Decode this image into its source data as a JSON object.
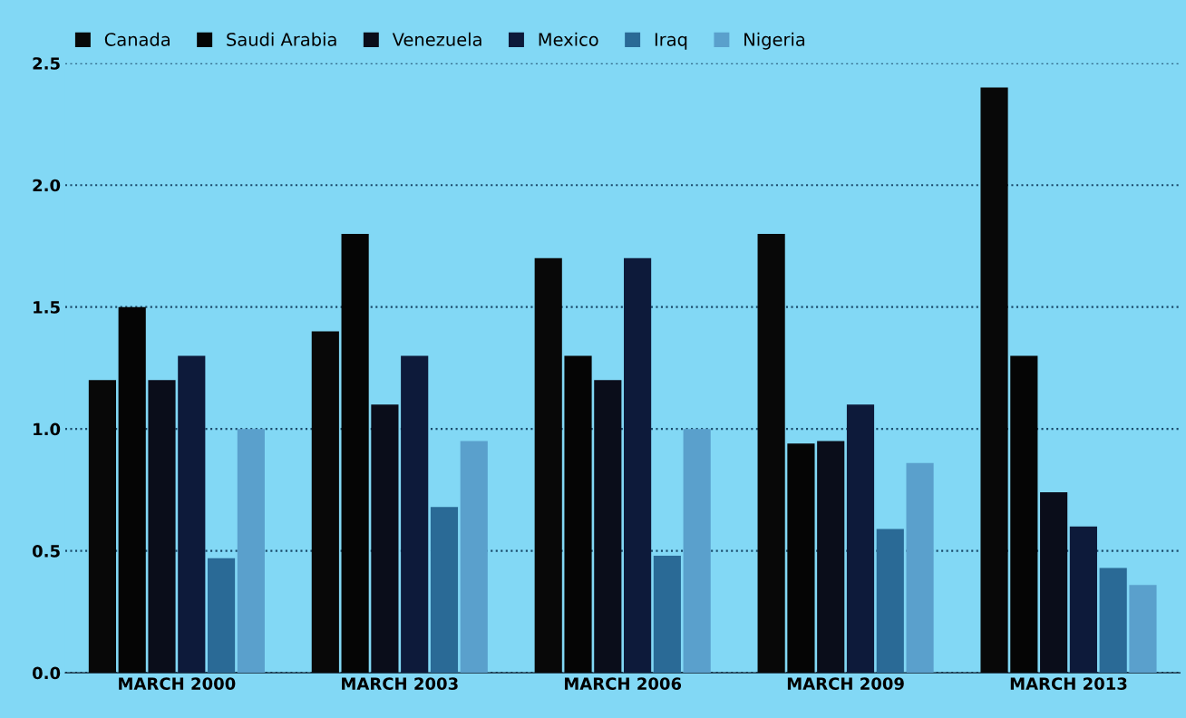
{
  "chart_data": {
    "type": "bar",
    "categories": [
      "MARCH 2000",
      "MARCH 2003",
      "MARCH 2006",
      "MARCH 2009",
      "MARCH 2013"
    ],
    "series": [
      {
        "name": "Canada",
        "color": "#080808",
        "values": [
          1.2,
          1.4,
          1.7,
          1.8,
          2.4
        ]
      },
      {
        "name": "Saudi Arabia",
        "color": "#050505",
        "values": [
          1.5,
          1.8,
          1.3,
          0.94,
          1.3
        ]
      },
      {
        "name": "Venezuela",
        "color": "#0a0d1a",
        "values": [
          1.2,
          1.1,
          1.2,
          0.95,
          0.74
        ]
      },
      {
        "name": "Mexico",
        "color": "#0d1a3a",
        "values": [
          1.3,
          1.3,
          1.7,
          1.1,
          0.6
        ]
      },
      {
        "name": "Iraq",
        "color": "#2a6a96",
        "values": [
          0.47,
          0.68,
          0.48,
          0.59,
          0.43
        ]
      },
      {
        "name": "Nigeria",
        "color": "#5aa0cc",
        "values": [
          1.0,
          0.95,
          1.0,
          0.86,
          0.36
        ]
      }
    ],
    "ylim": [
      0,
      2.5
    ],
    "yticks": [
      {
        "value": 0,
        "label": "0.0"
      },
      {
        "value": 0.5,
        "label": "0.5"
      },
      {
        "value": 1,
        "label": "1.0"
      },
      {
        "value": 1.5,
        "label": "1.5"
      },
      {
        "value": 2,
        "label": "2.0"
      },
      {
        "value": 2.5,
        "label": "2.5"
      }
    ],
    "grid": "y",
    "legend": "top"
  }
}
